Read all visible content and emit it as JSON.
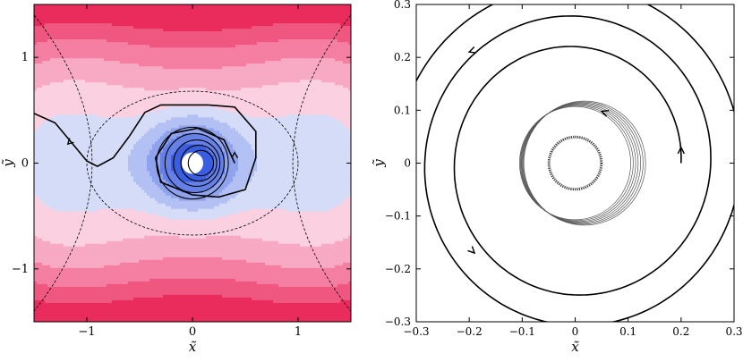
{
  "chart_data": [
    {
      "type": "contour",
      "xlabel": "x̃",
      "ylabel": "ỹ",
      "xlim": [
        -1.5,
        1.5
      ],
      "ylim": [
        -1.5,
        1.5
      ],
      "xticks": [
        -1,
        0,
        1
      ],
      "yticks": [
        -1,
        0,
        1
      ],
      "xtick_labels": [
        "−1",
        "0",
        "1"
      ],
      "ytick_labels": [
        "−1",
        "0",
        "1"
      ],
      "grid": false,
      "colors": {
        "positive": [
          "#fbd0e0",
          "#f8a9c3",
          "#f47fa2",
          "#ef5680",
          "#ea2c5c"
        ],
        "negative": [
          "#d4dcf8",
          "#b2c0f3",
          "#8ea2ee",
          "#6581e8",
          "#3a5ee2"
        ],
        "hole": "#ffffff"
      },
      "separatrix": "dashed",
      "trajectory": {
        "path": [
          [
            -1.5,
            0.47
          ],
          [
            -1.3,
            0.38
          ],
          [
            -1.15,
            0.2
          ],
          [
            -1.0,
            0.02
          ],
          [
            -0.9,
            -0.03
          ],
          [
            -0.75,
            0.05
          ],
          [
            -0.6,
            0.25
          ],
          [
            -0.45,
            0.48
          ],
          [
            -0.3,
            0.55
          ],
          [
            -0.1,
            0.55
          ],
          [
            0.15,
            0.55
          ],
          [
            0.4,
            0.53
          ],
          [
            0.6,
            0.3
          ],
          [
            0.6,
            0.05
          ],
          [
            0.5,
            -0.25
          ],
          [
            0.25,
            -0.32
          ],
          [
            0.0,
            -0.3
          ],
          [
            -0.3,
            -0.18
          ],
          [
            -0.35,
            0.05
          ],
          [
            -0.2,
            0.28
          ],
          [
            0.05,
            0.33
          ],
          [
            0.3,
            0.22
          ],
          [
            0.4,
            0.0
          ]
        ],
        "inner_rings": [
          0.34,
          0.28,
          0.22,
          0.17,
          0.12
        ]
      }
    },
    {
      "type": "line",
      "xlabel": "x̃",
      "ylabel": "ỹ",
      "xlim": [
        -0.3,
        0.3
      ],
      "ylim": [
        -0.3,
        0.3
      ],
      "xticks": [
        -0.3,
        -0.2,
        -0.1,
        0,
        0.1,
        0.2,
        0.3
      ],
      "yticks": [
        -0.3,
        -0.2,
        -0.1,
        0,
        0.1,
        0.2,
        0.3
      ],
      "xtick_labels": [
        "−0.3",
        "−0.2",
        "−0.1",
        "0",
        "0.1",
        "0.2",
        "0.3"
      ],
      "ytick_labels": [
        "−0.3",
        "−0.2",
        "−0.1",
        "0",
        "0.1",
        "0.2",
        "0.3"
      ],
      "grid": false,
      "series": [
        {
          "style": "black-spiral",
          "start": [
            0.2,
            0.0
          ],
          "r_start": 0.2,
          "r_end": 0.34,
          "turns": 2.5
        },
        {
          "style": "gray-rings",
          "radius": [
            0.105,
            0.115
          ],
          "count": 7
        },
        {
          "style": "hatched-ring",
          "radius": 0.05
        }
      ]
    }
  ]
}
